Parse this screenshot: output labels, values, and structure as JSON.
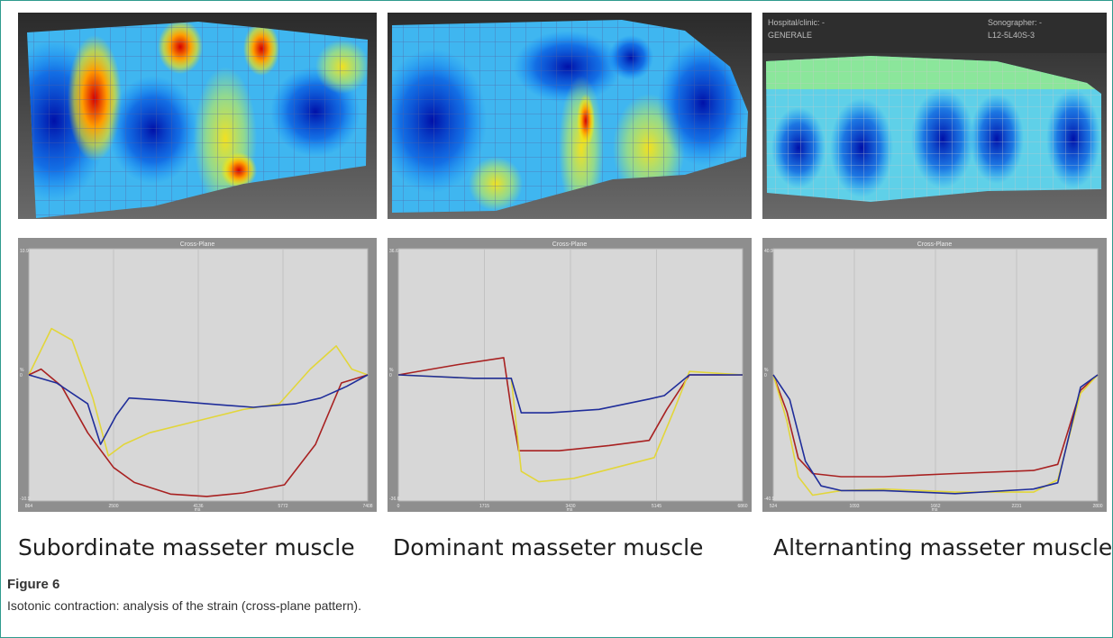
{
  "figure": {
    "title": "Figure 6",
    "caption": "Isotonic contraction: analysis of the strain (cross-plane pattern)."
  },
  "panels": [
    {
      "label": "Subordinate masseter muscle",
      "chart_data": {
        "type": "line",
        "title": "Cross-Plane",
        "xlabel": "ms",
        "ylabel": "%",
        "y_tick_labels": [
          "10.9",
          "0",
          "-10.9"
        ],
        "x_tick_labels": [
          "864",
          "2500",
          "4136",
          "5772",
          "7408"
        ],
        "series": [
          {
            "color": "#e2d63a",
            "x": [
              864,
              1300,
              1700,
              2100,
              2400,
              2700,
              3200,
              4100,
              5000,
              5700,
              6300,
              6800,
              7100,
              7408
            ],
            "values": [
              0,
              4,
              3,
              -2,
              -7,
              -6,
              -5,
              -4,
              -3,
              -2.5,
              0.5,
              2.5,
              0.5,
              0
            ]
          },
          {
            "color": "#a82121",
            "x": [
              864,
              1100,
              1500,
              2000,
              2500,
              2900,
              3600,
              4300,
              5000,
              5800,
              6400,
              6900,
              7408
            ],
            "values": [
              0,
              0.5,
              -1,
              -5,
              -8,
              -9.3,
              -10.3,
              -10.5,
              -10.2,
              -9.5,
              -6,
              -0.7,
              0
            ]
          },
          {
            "color": "#1f2d9a",
            "x": [
              864,
              1400,
              2000,
              2250,
              2550,
              2800,
              3500,
              4300,
              5200,
              6000,
              6500,
              7000,
              7408
            ],
            "values": [
              0,
              -0.7,
              -2.5,
              -6,
              -3.5,
              -2,
              -2.2,
              -2.5,
              -2.8,
              -2.5,
              -2,
              -1,
              0
            ]
          }
        ]
      }
    },
    {
      "label": "Dominant masseter muscle",
      "chart_data": {
        "type": "line",
        "title": "Cross-Plane",
        "xlabel": "ms",
        "ylabel": "%",
        "y_tick_labels": [
          "36.6",
          "0",
          "-36.6"
        ],
        "x_tick_labels": [
          "0",
          "1715",
          "3430",
          "5145",
          "6860"
        ],
        "series": [
          {
            "color": "#a82121",
            "x": [
              0,
              1200,
              2100,
              2250,
              2400,
              3200,
              4200,
              5000,
              5350,
              5800,
              6860
            ],
            "values": [
              0,
              3,
              5,
              -10,
              -22,
              -22,
              -20.5,
              -19,
              -10,
              0,
              0
            ]
          },
          {
            "color": "#e2d63a",
            "x": [
              0,
              1500,
              2250,
              2450,
              2800,
              3500,
              4300,
              5100,
              5500,
              5800,
              6860
            ],
            "values": [
              0,
              -1,
              -1,
              -28,
              -31,
              -30,
              -27,
              -24,
              -10,
              1,
              0
            ]
          },
          {
            "color": "#1f2d9a",
            "x": [
              0,
              1500,
              2250,
              2450,
              3000,
              4000,
              5000,
              5300,
              5800,
              6860
            ],
            "values": [
              0,
              -1,
              -1,
              -11,
              -11,
              -10,
              -7,
              -6,
              0,
              0
            ]
          }
        ]
      }
    },
    {
      "label": "Alternanting masseter muscle",
      "chart_data": {
        "type": "line",
        "title": "Cross-Plane",
        "xlabel": "ms",
        "ylabel": "%",
        "y_tick_labels": [
          "40.9",
          "0",
          "-40.9"
        ],
        "x_tick_labels": [
          "524",
          "1093",
          "1662",
          "2231",
          "2800"
        ],
        "series": [
          {
            "color": "#a82121",
            "x": [
              524,
              620,
              700,
              800,
              1000,
              1300,
              1800,
              2350,
              2520,
              2680,
              2800
            ],
            "values": [
              0,
              -12,
              -27,
              -32,
              -33,
              -33,
              -32,
              -31,
              -29,
              -5,
              0
            ]
          },
          {
            "color": "#e2d63a",
            "x": [
              524,
              620,
              700,
              800,
              1000,
              1300,
              1800,
              2350,
              2520,
              2680,
              2800
            ],
            "values": [
              0,
              -15,
              -33,
              -39,
              -37.5,
              -37,
              -38,
              -38,
              -34,
              -6,
              0
            ]
          },
          {
            "color": "#1f2d9a",
            "x": [
              524,
              640,
              750,
              860,
              1000,
              1300,
              1800,
              2350,
              2520,
              2680,
              2800
            ],
            "values": [
              0,
              -8,
              -28,
              -36,
              -37.5,
              -37.5,
              -38.5,
              -37,
              -35,
              -4,
              0
            ]
          }
        ]
      }
    }
  ],
  "ultrasound": {
    "overlay_left": "Hospital/clinic: -",
    "overlay_left2": "GENERALE",
    "overlay_right": "Sonographer: -",
    "overlay_right2": "L12-5L40S-3"
  }
}
